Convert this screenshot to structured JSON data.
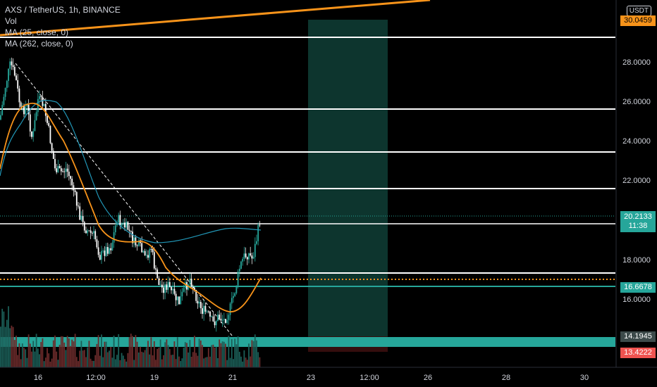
{
  "legend": {
    "title": "AXS / TetherUS, 1h, BINANCE",
    "vol": "Vol",
    "ma1": "MA (25, close, 0)",
    "ma2": "MA (262, close, 0)"
  },
  "price_axis": {
    "unit": "USDT",
    "ticks": [
      "28.0000",
      "26.0000",
      "24.0000",
      "22.0000",
      "18.0000",
      "16.0000"
    ],
    "tags": {
      "top": "30.0459",
      "current_price": "20.2133",
      "current_time": "11:38",
      "level_teal": "16.6678",
      "level_low": "14.1945",
      "stop": "13.4222"
    }
  },
  "time_axis": {
    "labels": [
      "16",
      "12:00",
      "19",
      "21",
      "23",
      "12:00",
      "26",
      "28",
      "30"
    ]
  },
  "colors": {
    "background": "#000000",
    "teal": "#26a69a",
    "orange": "#f7931a",
    "red": "#ef5350",
    "white": "#ffffff",
    "ma_blue": "#2196b6"
  }
}
